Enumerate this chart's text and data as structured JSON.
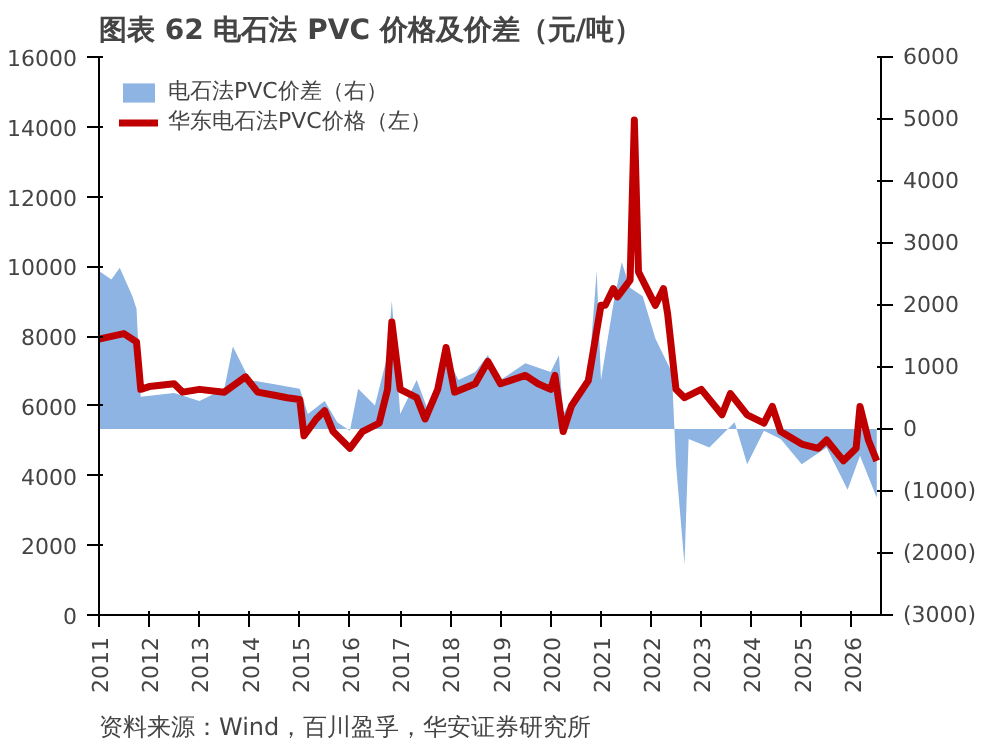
{
  "chart_data": {
    "type": "line",
    "title": "图表 62 电石法 PVC 价格及价差（元/吨）",
    "series": [
      {
        "name": "电石法PVC价差（右）",
        "type": "area",
        "axis": "y2",
        "color": "#8db4e2",
        "x": [
          "2011-01",
          "2011-04",
          "2011-06",
          "2011-09",
          "2011-10",
          "2011-11",
          "2012-07",
          "2013-01",
          "2013-07",
          "2013-09",
          "2014-01",
          "2014-07",
          "2015-01",
          "2015-03",
          "2015-07",
          "2015-10",
          "2016-01",
          "2016-03",
          "2016-07",
          "2016-10",
          "2016-11",
          "2017-01",
          "2017-05",
          "2017-08",
          "2017-12",
          "2018-03",
          "2018-07",
          "2018-10",
          "2019-01",
          "2019-07",
          "2020-01",
          "2020-03",
          "2020-04",
          "2020-07",
          "2020-10",
          "2020-12",
          "2021-01",
          "2021-04",
          "2021-06",
          "2021-08",
          "2021-11",
          "2022-02",
          "2022-04",
          "2022-06",
          "2022-07",
          "2022-09",
          "2022-10",
          "2023-03",
          "2023-09",
          "2023-12",
          "2024-04",
          "2024-08",
          "2025-01",
          "2025-07",
          "2025-12",
          "2026-03",
          "2026-07"
        ],
        "values": [
          2550,
          2410,
          2600,
          2140,
          1940,
          520,
          580,
          450,
          650,
          1330,
          790,
          720,
          650,
          240,
          450,
          110,
          -30,
          650,
          380,
          1190,
          2070,
          240,
          790,
          240,
          1190,
          790,
          920,
          1190,
          790,
          1060,
          920,
          1190,
          240,
          580,
          790,
          2550,
          790,
          2010,
          2690,
          2280,
          2140,
          1460,
          1190,
          920,
          -570,
          -2190,
          -160,
          -300,
          110,
          -570,
          -30,
          -160,
          -570,
          -300,
          -980,
          -430,
          -1110
        ]
      },
      {
        "name": "华东电石法PVC价格（左）",
        "color": "#c00000",
        "x": [
          "2011-01",
          "2011-04",
          "2011-07",
          "2011-10",
          "2011-11",
          "2012-01",
          "2012-07",
          "2012-09",
          "2013-01",
          "2013-07",
          "2013-12",
          "2014-03",
          "2014-07",
          "2014-10",
          "2015-01",
          "2015-02",
          "2015-05",
          "2015-07",
          "2015-09",
          "2016-01",
          "2016-04",
          "2016-08",
          "2016-10",
          "2016-11",
          "2017-01",
          "2017-05",
          "2017-07",
          "2017-10",
          "2017-12",
          "2018-02",
          "2018-07",
          "2018-10",
          "2019-01",
          "2019-07",
          "2019-10",
          "2020-01",
          "2020-02",
          "2020-04",
          "2020-06",
          "2020-10",
          "2021-01",
          "2021-02",
          "2021-04",
          "2021-05",
          "2021-08",
          "2021-09",
          "2021-10",
          "2022-02",
          "2022-04",
          "2022-05",
          "2022-07",
          "2022-09",
          "2023-01",
          "2023-06",
          "2023-08",
          "2023-12",
          "2024-04",
          "2024-06",
          "2024-08",
          "2025-01",
          "2025-05",
          "2025-07",
          "2025-11",
          "2026-02",
          "2026-03",
          "2026-05",
          "2026-07"
        ],
        "values": [
          7910,
          7990,
          8070,
          7830,
          6470,
          6550,
          6630,
          6390,
          6470,
          6390,
          6830,
          6390,
          6300,
          6230,
          6180,
          5140,
          5620,
          5860,
          5260,
          4780,
          5260,
          5500,
          6470,
          8400,
          6470,
          6230,
          5620,
          6470,
          7670,
          6390,
          6630,
          7270,
          6630,
          6870,
          6630,
          6470,
          6870,
          5260,
          6000,
          6720,
          8880,
          8880,
          9360,
          9120,
          9600,
          14190,
          9840,
          8880,
          9360,
          8640,
          6470,
          6230,
          6470,
          5740,
          6350,
          5740,
          5500,
          5980,
          5260,
          4900,
          4780,
          5020,
          4420,
          4780,
          5980,
          5020,
          4420
        ]
      }
    ],
    "xlim": [
      "2011-01-01",
      "2026-08-01"
    ],
    "xticks": [
      "2011",
      "2012",
      "2013",
      "2014",
      "2015",
      "2016",
      "2017",
      "2018",
      "2019",
      "2020",
      "2021",
      "2022",
      "2023",
      "2024",
      "2025",
      "2026"
    ],
    "ylim": [
      0,
      16000
    ],
    "yticks": [
      0,
      2000,
      4000,
      6000,
      8000,
      10000,
      12000,
      14000,
      16000
    ],
    "y2lim": [
      -3000,
      6000
    ],
    "y2ticks": [
      {
        "value": -3000,
        "label": "(3000)"
      },
      {
        "value": -2000,
        "label": "(2000)"
      },
      {
        "value": -1000,
        "label": "(1000)"
      },
      0,
      1000,
      2000,
      3000,
      4000,
      5000,
      6000
    ],
    "legend": "top left",
    "grid": false,
    "annotations": [
      "资料来源：Wind，百川盈孚，华安证券研究所"
    ]
  }
}
